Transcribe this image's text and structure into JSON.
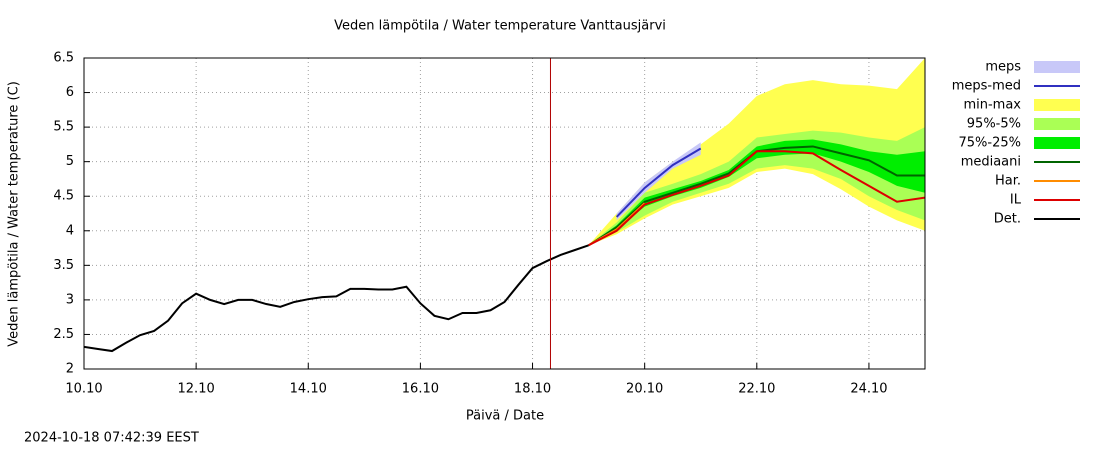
{
  "chart_data": {
    "type": "line",
    "title": "Veden lämpötila / Water temperature Vanttausjärvi",
    "x_label": "Päivä / Date",
    "y_label": "Veden lämpötila / Water temperature (C)",
    "timestamp": "2024-10-18 07:42:39 EEST",
    "xlim": [
      10,
      25
    ],
    "ylim": [
      2,
      6.5
    ],
    "xticks": [
      {
        "value": 10,
        "label": "10.10"
      },
      {
        "value": 12,
        "label": "12.10"
      },
      {
        "value": 14,
        "label": "14.10"
      },
      {
        "value": 16,
        "label": "16.10"
      },
      {
        "value": 18,
        "label": "18.10"
      },
      {
        "value": 20,
        "label": "20.10"
      },
      {
        "value": 22,
        "label": "22.10"
      },
      {
        "value": 24,
        "label": "24.10"
      }
    ],
    "yticks": [
      2,
      2.5,
      3,
      3.5,
      4,
      4.5,
      5,
      5.5,
      6,
      6.5
    ],
    "grid": true,
    "marker_x": 18.32,
    "marker_color": "#b00000",
    "series": [
      {
        "name": "meps",
        "kind": "band",
        "color": "#c8c8f8",
        "x": [
          19.5,
          20,
          20.5,
          21
        ],
        "lower": [
          4.15,
          4.55,
          4.9,
          5.1
        ],
        "upper": [
          4.25,
          4.7,
          5.0,
          5.28
        ]
      },
      {
        "name": "meps-med",
        "kind": "line",
        "color": "#3030c0",
        "x": [
          19.5,
          20,
          20.5,
          21
        ],
        "values": [
          4.2,
          4.62,
          4.95,
          5.19
        ]
      },
      {
        "name": "min-max",
        "kind": "band",
        "color": "#ffff50",
        "x": [
          19,
          19.5,
          20,
          20.5,
          21,
          21.5,
          22,
          22.5,
          23,
          23.5,
          24,
          24.5,
          25
        ],
        "lower": [
          3.79,
          3.95,
          4.18,
          4.38,
          4.5,
          4.62,
          4.85,
          4.9,
          4.82,
          4.6,
          4.35,
          4.15,
          4.0
        ],
        "upper": [
          3.79,
          4.25,
          4.7,
          5.0,
          5.25,
          5.55,
          5.95,
          6.12,
          6.18,
          6.12,
          6.1,
          6.05,
          6.5
        ]
      },
      {
        "name": "95%-5%",
        "kind": "band",
        "color": "#aaff55",
        "x": [
          19,
          19.5,
          20,
          20.5,
          21,
          21.5,
          22,
          22.5,
          23,
          23.5,
          24,
          24.5,
          25
        ],
        "lower": [
          3.79,
          3.98,
          4.22,
          4.42,
          4.55,
          4.68,
          4.9,
          4.95,
          4.9,
          4.75,
          4.5,
          4.3,
          4.15
        ],
        "upper": [
          3.79,
          4.12,
          4.55,
          4.68,
          4.82,
          5.0,
          5.35,
          5.4,
          5.45,
          5.42,
          5.35,
          5.3,
          5.5
        ]
      },
      {
        "name": "75%-25%",
        "kind": "band",
        "color": "#00ee00",
        "x": [
          19,
          19.5,
          20,
          20.5,
          21,
          21.5,
          22,
          22.5,
          23,
          23.5,
          24,
          24.5,
          25
        ],
        "lower": [
          3.79,
          4.02,
          4.35,
          4.5,
          4.62,
          4.78,
          5.05,
          5.1,
          5.12,
          5.0,
          4.85,
          4.65,
          4.55
        ],
        "upper": [
          3.79,
          4.08,
          4.48,
          4.6,
          4.72,
          4.88,
          5.22,
          5.3,
          5.32,
          5.25,
          5.15,
          5.1,
          5.15
        ]
      },
      {
        "name": "mediaani",
        "kind": "line",
        "color": "#006400",
        "x": [
          19,
          19.5,
          20,
          20.5,
          21,
          21.5,
          22,
          22.5,
          23,
          23.5,
          24,
          24.5,
          25
        ],
        "values": [
          3.79,
          4.05,
          4.42,
          4.55,
          4.68,
          4.83,
          5.15,
          5.2,
          5.22,
          5.12,
          5.02,
          4.8,
          4.8
        ]
      },
      {
        "name": "Har.",
        "kind": "line",
        "color": "#ff8c00",
        "x": [
          19,
          19.5,
          20
        ],
        "values": [
          3.79,
          4.02,
          4.4
        ]
      },
      {
        "name": "IL",
        "kind": "line",
        "color": "#dd0000",
        "x": [
          19,
          19.5,
          20,
          20.5,
          21,
          21.5,
          22,
          22.5,
          23,
          23.5,
          24,
          24.5,
          25
        ],
        "values": [
          3.79,
          4.0,
          4.38,
          4.52,
          4.65,
          4.8,
          5.15,
          5.15,
          5.12,
          4.88,
          4.65,
          4.42,
          4.48
        ]
      },
      {
        "name": "Det.",
        "kind": "line",
        "color": "#000000",
        "x": [
          10,
          10.25,
          10.5,
          10.75,
          11,
          11.25,
          11.5,
          11.75,
          12,
          12.25,
          12.5,
          12.75,
          13,
          13.25,
          13.5,
          13.75,
          14,
          14.25,
          14.5,
          14.75,
          15,
          15.25,
          15.5,
          15.75,
          16,
          16.25,
          16.5,
          16.75,
          17,
          17.25,
          17.5,
          17.75,
          18,
          18.25,
          18.5,
          18.75,
          19
        ],
        "values": [
          2.32,
          2.29,
          2.26,
          2.38,
          2.49,
          2.55,
          2.7,
          2.95,
          3.09,
          3.0,
          2.94,
          3.0,
          3.0,
          2.94,
          2.9,
          2.97,
          3.01,
          3.04,
          3.05,
          3.16,
          3.16,
          3.15,
          3.15,
          3.19,
          2.95,
          2.77,
          2.72,
          2.81,
          2.81,
          2.85,
          2.97,
          3.22,
          3.46,
          3.56,
          3.65,
          3.72,
          3.79
        ]
      }
    ]
  }
}
